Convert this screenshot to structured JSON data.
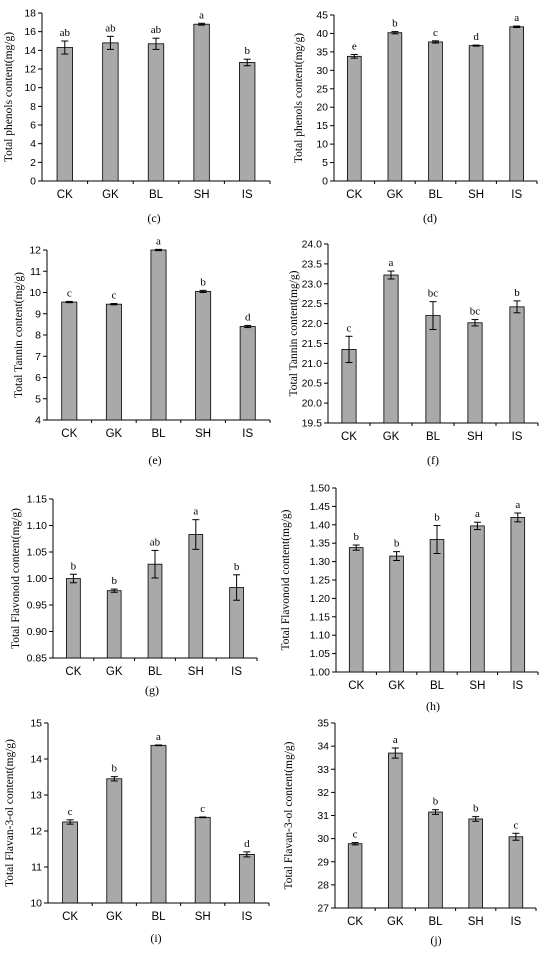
{
  "chart_data": [
    {
      "id": "c",
      "type": "bar",
      "caption": "(c)",
      "ylabel": "Total phenols content(mg/g)",
      "categories": [
        "CK",
        "GK",
        "BL",
        "SH",
        "IS"
      ],
      "values": [
        14.3,
        14.8,
        14.7,
        16.8,
        12.7
      ],
      "errors": [
        0.7,
        0.7,
        0.6,
        0.1,
        0.35
      ],
      "letters": [
        "ab",
        "ab",
        "ab",
        "a",
        "b"
      ],
      "ylim": [
        0,
        18
      ],
      "yticks": [
        "0",
        "2",
        "4",
        "6",
        "8",
        "10",
        "12",
        "14",
        "16",
        "18"
      ]
    },
    {
      "id": "d",
      "type": "bar",
      "caption": "(d)",
      "ylabel": "Total phenols content(mg/g)",
      "categories": [
        "CK",
        "GK",
        "BL",
        "SH",
        "IS"
      ],
      "values": [
        33.8,
        40.2,
        37.7,
        36.7,
        41.8
      ],
      "errors": [
        0.5,
        0.3,
        0.3,
        0.15,
        0.2
      ],
      "letters": [
        "e",
        "b",
        "c",
        "d",
        "a"
      ],
      "ylim": [
        0,
        45
      ],
      "yticks": [
        "0",
        "5",
        "10",
        "15",
        "20",
        "25",
        "30",
        "35",
        "40",
        "45"
      ]
    },
    {
      "id": "e",
      "type": "bar",
      "caption": "(e)",
      "ylabel": "Total Tannin content(mg/g)",
      "categories": [
        "CK",
        "GK",
        "BL",
        "SH",
        "IS"
      ],
      "values": [
        9.55,
        9.45,
        12.0,
        10.05,
        8.4
      ],
      "errors": [
        0.03,
        0.03,
        0.03,
        0.05,
        0.05
      ],
      "letters": [
        "c",
        "c",
        "a",
        "b",
        "d"
      ],
      "ylim": [
        4,
        12
      ],
      "yticks": [
        "4",
        "5",
        "6",
        "7",
        "8",
        "9",
        "10",
        "11",
        "12"
      ]
    },
    {
      "id": "f",
      "type": "bar",
      "caption": "(f)",
      "ylabel": "Total Tannin content(mg/g)",
      "categories": [
        "CK",
        "GK",
        "BL",
        "SH",
        "IS"
      ],
      "values": [
        21.35,
        23.22,
        22.2,
        22.02,
        22.42
      ],
      "errors": [
        0.33,
        0.1,
        0.35,
        0.08,
        0.15
      ],
      "letters": [
        "c",
        "a",
        "bc",
        "bc",
        "b"
      ],
      "ylim": [
        19.5,
        24.0
      ],
      "yticks": [
        "19.5",
        "20.0",
        "20.5",
        "21.0",
        "21.5",
        "22.0",
        "22.5",
        "23.0",
        "23.5",
        "24.0"
      ]
    },
    {
      "id": "g",
      "type": "bar",
      "caption": "(g)",
      "ylabel": "Total Flavonoid content(mg/g)",
      "categories": [
        "CK",
        "GK",
        "BL",
        "SH",
        "IS"
      ],
      "values": [
        1.0,
        0.977,
        1.027,
        1.083,
        0.983
      ],
      "errors": [
        0.008,
        0.003,
        0.026,
        0.028,
        0.024
      ],
      "letters": [
        "b",
        "b",
        "ab",
        "a",
        "b"
      ],
      "ylim": [
        0.85,
        1.15
      ],
      "yticks": [
        "0.85",
        "0.90",
        "0.95",
        "1.00",
        "1.05",
        "1.10",
        "1.15"
      ]
    },
    {
      "id": "h",
      "type": "bar",
      "caption": "(h)",
      "ylabel": "Total Flavonoid content(mg/g)",
      "categories": [
        "CK",
        "GK",
        "BL",
        "SH",
        "IS"
      ],
      "values": [
        1.338,
        1.315,
        1.36,
        1.397,
        1.42
      ],
      "errors": [
        0.007,
        0.012,
        0.038,
        0.01,
        0.012
      ],
      "letters": [
        "b",
        "b",
        "b",
        "a",
        "a"
      ],
      "ylim": [
        1.0,
        1.5
      ],
      "yticks": [
        "1.00",
        "1.05",
        "1.10",
        "1.15",
        "1.20",
        "1.25",
        "1.30",
        "1.35",
        "1.40",
        "1.45",
        "1.50"
      ]
    },
    {
      "id": "i",
      "type": "bar",
      "caption": "(i)",
      "ylabel": "Total Flavan-3-ol content(mg/g)",
      "categories": [
        "CK",
        "GK",
        "BL",
        "SH",
        "IS"
      ],
      "values": [
        12.25,
        13.45,
        14.38,
        12.38,
        11.35
      ],
      "errors": [
        0.06,
        0.06,
        0.01,
        0.01,
        0.07
      ],
      "letters": [
        "c",
        "b",
        "a",
        "c",
        "d"
      ],
      "ylim": [
        10,
        15
      ],
      "yticks": [
        "10",
        "11",
        "12",
        "13",
        "14",
        "15"
      ]
    },
    {
      "id": "j",
      "type": "bar",
      "caption": "(j)",
      "ylabel": "Total Flavan-3-ol content(mg/g)",
      "categories": [
        "CK",
        "GK",
        "BL",
        "SH",
        "IS"
      ],
      "values": [
        29.78,
        33.7,
        31.15,
        30.85,
        30.08
      ],
      "errors": [
        0.05,
        0.22,
        0.1,
        0.1,
        0.15
      ],
      "letters": [
        "c",
        "a",
        "b",
        "b",
        "c"
      ],
      "ylim": [
        27,
        35
      ],
      "yticks": [
        "27",
        "28",
        "29",
        "30",
        "31",
        "32",
        "33",
        "34",
        "35"
      ]
    }
  ]
}
